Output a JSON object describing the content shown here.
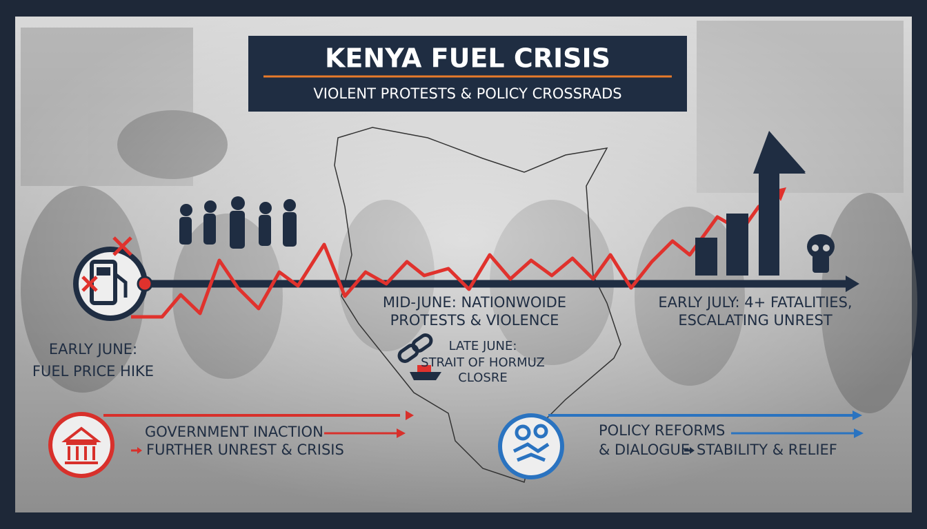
{
  "header": {
    "title": "KENYA FUEL CRISIS",
    "subtitle": "VIOLENT PROTESTS & POLICY CROSSRADS"
  },
  "events": [
    {
      "lines": [
        "EARLY JUNE:",
        "FUEL PRICE HIKE"
      ]
    },
    {
      "lines": [
        "MID-JUNE: NATIONWOIDE",
        "PROTESTS & VIOLENCE"
      ]
    },
    {
      "lines": [
        "LATE JUNE:",
        "STRAIT OF HORMUZ",
        "CLOSRE"
      ]
    },
    {
      "lines": [
        "EARLY JULY: 4+ FATALITIES,",
        "ESCALATING UNREST"
      ]
    }
  ],
  "outcomes": [
    {
      "lines": [
        "GOVERNMENT INACTION",
        "FURTHER UNREST & CRISIS"
      ]
    },
    {
      "lines": [
        "POLICY REFORMS",
        "& DIALOGUE",
        "STABILITY & RELIEF"
      ]
    }
  ]
}
